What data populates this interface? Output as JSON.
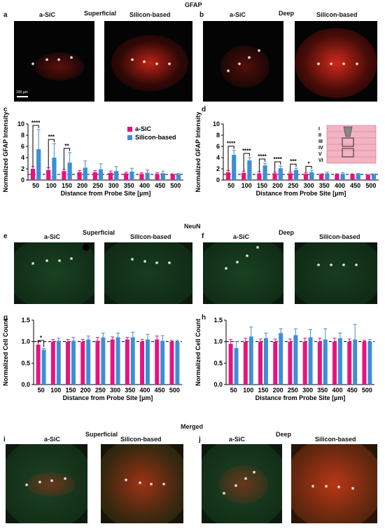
{
  "sections": {
    "gfap": "GFAP",
    "neun": "NeuN",
    "merged": "Merged"
  },
  "panel_letters": {
    "a": "a",
    "b": "b",
    "c": "c",
    "d": "d",
    "e": "e",
    "f": "f",
    "g": "g",
    "h": "h",
    "i": "i",
    "j": "j"
  },
  "groups": {
    "superficial": "Superficial",
    "deep": "Deep"
  },
  "columns": {
    "asic": "a-SiC",
    "silicon": "Silicon-based"
  },
  "scale_bar": "100 µm",
  "star": "*",
  "colors": {
    "asic": "#e8127f",
    "silicon": "#3b8fd6",
    "gfap": "#d8261c",
    "neun": "#2f9a4a"
  },
  "chart_data": [
    {
      "id": "c",
      "type": "bar",
      "title": "",
      "xlabel": "Distance from Probe Site [µm]",
      "ylabel": "Normalized GFAP Intensity",
      "categories": [
        "50",
        "100",
        "150",
        "200",
        "250",
        "300",
        "350",
        "400",
        "450",
        "500"
      ],
      "ylim": [
        0,
        10
      ],
      "yticks": [
        "0",
        "2",
        "4",
        "6",
        "8",
        "10"
      ],
      "reference_line": 1,
      "legend_position": "top-right",
      "series": [
        {
          "name": "a-SiC",
          "values": [
            2.0,
            1.8,
            1.6,
            1.4,
            1.4,
            1.3,
            1.2,
            1.1,
            1.1,
            1.0
          ],
          "errors": [
            0.4,
            0.4,
            0.3,
            0.3,
            0.3,
            0.3,
            0.2,
            0.2,
            0.2,
            0.1
          ]
        },
        {
          "name": "Silicon-based",
          "values": [
            5.5,
            4.0,
            3.1,
            2.2,
            1.9,
            1.6,
            1.5,
            1.3,
            1.2,
            1.0
          ],
          "errors": [
            3.5,
            2.5,
            1.8,
            1.2,
            1.0,
            0.8,
            0.6,
            0.5,
            0.4,
            0.2
          ]
        }
      ],
      "significance": [
        {
          "category": "50",
          "label": "****"
        },
        {
          "category": "100",
          "label": "***"
        },
        {
          "category": "150",
          "label": "**"
        }
      ]
    },
    {
      "id": "d",
      "type": "bar",
      "title": "",
      "xlabel": "Distance from Probe Site [µm]",
      "ylabel": "Normalized GFAP  Intensity",
      "categories": [
        "50",
        "100",
        "150",
        "200",
        "250",
        "300",
        "350",
        "400",
        "450",
        "500"
      ],
      "ylim": [
        0,
        10
      ],
      "yticks": [
        "0",
        "2",
        "4",
        "6",
        "8",
        "10"
      ],
      "reference_line": 1,
      "series": [
        {
          "name": "a-SiC",
          "values": [
            1.4,
            1.3,
            1.2,
            1.2,
            1.2,
            1.1,
            1.0,
            1.0,
            1.0,
            0.9
          ],
          "errors": [
            0.3,
            0.3,
            0.3,
            0.2,
            0.2,
            0.2,
            0.1,
            0.1,
            0.1,
            0.1
          ]
        },
        {
          "name": "Silicon-based",
          "values": [
            4.5,
            3.5,
            2.6,
            2.1,
            1.8,
            1.4,
            1.2,
            1.1,
            1.1,
            1.0
          ],
          "errors": [
            0.8,
            0.5,
            0.4,
            0.4,
            0.3,
            0.3,
            0.2,
            0.2,
            0.1,
            0.1
          ]
        }
      ],
      "significance": [
        {
          "category": "50",
          "label": "****"
        },
        {
          "category": "100",
          "label": "****"
        },
        {
          "category": "150",
          "label": "****"
        },
        {
          "category": "200",
          "label": "****"
        },
        {
          "category": "250",
          "label": "***"
        },
        {
          "category": "300",
          "label": "*"
        }
      ],
      "inset_layers": [
        "I",
        "II",
        "III",
        "IV",
        "V",
        "VI"
      ]
    },
    {
      "id": "g",
      "type": "bar",
      "title": "",
      "xlabel": "Distance from Probe Site [µm]",
      "ylabel": "Normalized Cell Count",
      "categories": [
        "50",
        "100",
        "150",
        "200",
        "250",
        "300",
        "350",
        "400",
        "450",
        "500"
      ],
      "ylim": [
        0,
        1.5
      ],
      "yticks": [
        "0.0",
        "0.5",
        "1.0",
        "1.5"
      ],
      "reference_line": 1,
      "series": [
        {
          "name": "a-SiC",
          "values": [
            0.93,
            1.0,
            1.0,
            1.0,
            1.02,
            1.05,
            1.05,
            1.0,
            1.05,
            1.0
          ],
          "errors": [
            0.08,
            0.05,
            0.05,
            0.05,
            0.08,
            0.06,
            0.05,
            0.05,
            0.08,
            0.03
          ]
        },
        {
          "name": "Silicon-based",
          "values": [
            0.81,
            1.02,
            1.02,
            1.05,
            1.1,
            1.1,
            1.1,
            1.05,
            1.02,
            1.0
          ],
          "errors": [
            0.03,
            0.06,
            0.08,
            0.08,
            0.1,
            0.1,
            0.12,
            0.12,
            0.12,
            0.03
          ]
        }
      ],
      "significance": [
        {
          "category": "50",
          "label": "*"
        }
      ]
    },
    {
      "id": "h",
      "type": "bar",
      "title": "",
      "xlabel": "Distance from Probe Site [µm]",
      "ylabel": "Normalized Cell Count",
      "categories": [
        "50",
        "100",
        "150",
        "200",
        "250",
        "300",
        "350",
        "400",
        "450",
        "500"
      ],
      "ylim": [
        0,
        1.5
      ],
      "yticks": [
        "0.0",
        "0.5",
        "1.0",
        "1.5"
      ],
      "reference_line": 1,
      "series": [
        {
          "name": "a-SiC",
          "values": [
            0.95,
            1.0,
            1.0,
            1.0,
            1.0,
            1.0,
            1.0,
            1.0,
            1.0,
            1.0
          ],
          "errors": [
            0.1,
            0.08,
            0.06,
            0.06,
            0.06,
            0.08,
            0.08,
            0.08,
            0.06,
            0.03
          ]
        },
        {
          "name": "Silicon-based",
          "values": [
            0.85,
            1.12,
            1.08,
            1.2,
            1.15,
            1.1,
            1.05,
            1.08,
            1.05,
            1.0
          ],
          "errors": [
            0.15,
            0.22,
            0.12,
            0.1,
            0.15,
            0.18,
            0.25,
            0.12,
            0.35,
            0.05
          ]
        }
      ],
      "significance": []
    }
  ]
}
